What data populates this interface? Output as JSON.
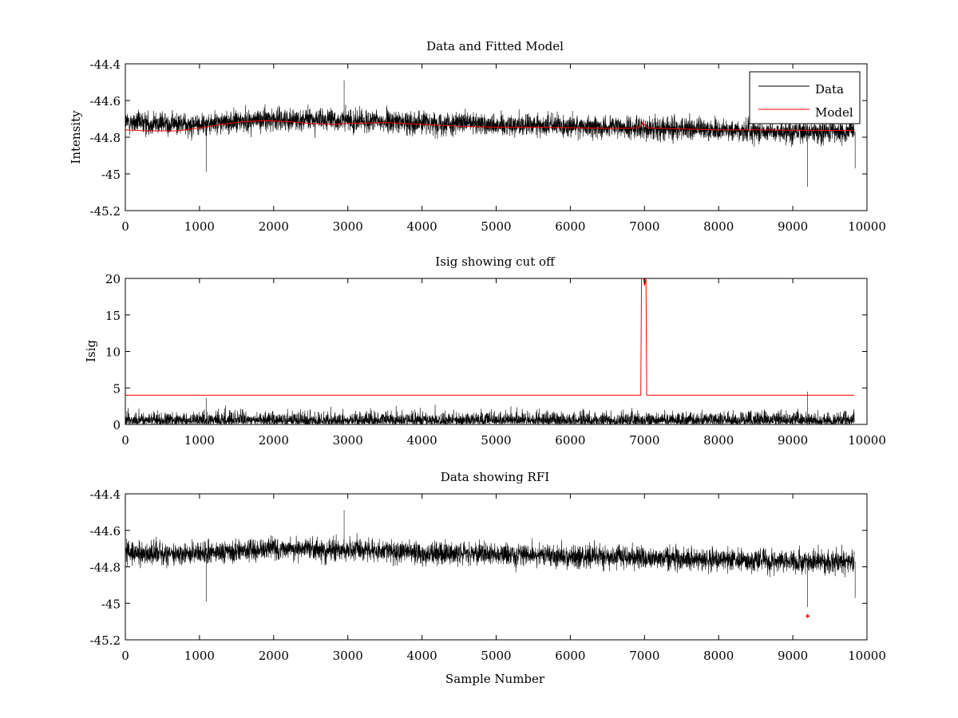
{
  "figure": {
    "xlabel": "Sample Number"
  },
  "chart_data": [
    {
      "type": "line",
      "title": "Data and Fitted Model",
      "xlabel": "",
      "ylabel": "Intensity",
      "xlim": [
        0,
        10000
      ],
      "ylim": [
        -45.2,
        -44.4
      ],
      "xticks": [
        "0",
        "1000",
        "2000",
        "3000",
        "4000",
        "5000",
        "6000",
        "7000",
        "8000",
        "9000",
        "10000"
      ],
      "yticks": [
        "-44.4",
        "-44.6",
        "-44.8",
        "-45",
        "-45.2"
      ],
      "legend": {
        "placement": "top-right",
        "entries": [
          "Data",
          "Model"
        ]
      },
      "series": [
        {
          "name": "Data",
          "color": "#000000",
          "kind": "noise",
          "n_points": 9830,
          "x_range": [
            1,
            9830
          ],
          "baseline": [
            [
              0,
              -44.72
            ],
            [
              1000,
              -44.73
            ],
            [
              2000,
              -44.7
            ],
            [
              3000,
              -44.71
            ],
            [
              4000,
              -44.72
            ],
            [
              5000,
              -44.73
            ],
            [
              6000,
              -44.74
            ],
            [
              7000,
              -44.75
            ],
            [
              8000,
              -44.76
            ],
            [
              9000,
              -44.77
            ],
            [
              9830,
              -44.77
            ]
          ],
          "amplitude": 0.1,
          "extremes": [
            [
              1090,
              -44.99
            ],
            [
              2950,
              -44.49
            ],
            [
              9200,
              -45.07
            ],
            [
              9840,
              -44.97
            ]
          ]
        },
        {
          "name": "Model",
          "color": "#ff0000",
          "x": [
            0,
            300,
            700,
            1000,
            1300,
            1600,
            1900,
            2200,
            2500,
            2800,
            3000,
            3500,
            4000,
            4500,
            5000,
            5500,
            6000,
            6500,
            6900,
            6960,
            6980,
            7000,
            7060,
            7500,
            8000,
            8500,
            9000,
            9500,
            9830
          ],
          "y": [
            -44.76,
            -44.765,
            -44.765,
            -44.75,
            -44.73,
            -44.715,
            -44.71,
            -44.715,
            -44.725,
            -44.73,
            -44.725,
            -44.72,
            -44.73,
            -44.74,
            -44.745,
            -44.745,
            -44.748,
            -44.752,
            -44.75,
            -44.735,
            -44.715,
            -44.735,
            -44.75,
            -44.755,
            -44.76,
            -44.76,
            -44.762,
            -44.763,
            -44.763
          ]
        }
      ]
    },
    {
      "type": "line",
      "title": "Isig showing cut off",
      "xlabel": "",
      "ylabel": "Isig",
      "xlim": [
        0,
        10000
      ],
      "ylim": [
        0,
        20
      ],
      "xticks": [
        "0",
        "1000",
        "2000",
        "3000",
        "4000",
        "5000",
        "6000",
        "7000",
        "8000",
        "9000",
        "10000"
      ],
      "yticks": [
        "0",
        "5",
        "10",
        "15",
        "20"
      ],
      "series": [
        {
          "color": "#000000",
          "kind": "abs-noise",
          "n_points": 9830,
          "x_range": [
            1,
            9830
          ],
          "level": 2.0,
          "extremes": [
            [
              1090,
              3.6
            ],
            [
              9200,
              4.5
            ]
          ]
        },
        {
          "color": "#ff0000",
          "x": [
            0,
            6950,
            6960,
            6990,
            7000,
            7020,
            7030,
            9830
          ],
          "y": [
            4,
            4,
            20,
            20,
            19,
            20,
            4,
            4
          ]
        }
      ]
    },
    {
      "type": "line",
      "title": "Data showing RFI",
      "xlabel": "Sample Number",
      "ylabel": "",
      "xlim": [
        0,
        10000
      ],
      "ylim": [
        -45.2,
        -44.4
      ],
      "xticks": [
        "0",
        "1000",
        "2000",
        "3000",
        "4000",
        "5000",
        "6000",
        "7000",
        "8000",
        "9000",
        "10000"
      ],
      "yticks": [
        "-44.4",
        "-44.6",
        "-44.8",
        "-45",
        "-45.2"
      ],
      "series": [
        {
          "color": "#000000",
          "kind": "noise",
          "n_points": 9830,
          "x_range": [
            1,
            9830
          ],
          "baseline": [
            [
              0,
              -44.72
            ],
            [
              1000,
              -44.73
            ],
            [
              2000,
              -44.7
            ],
            [
              3000,
              -44.71
            ],
            [
              4000,
              -44.72
            ],
            [
              5000,
              -44.73
            ],
            [
              6000,
              -44.74
            ],
            [
              7000,
              -44.75
            ],
            [
              8000,
              -44.76
            ],
            [
              9000,
              -44.77
            ],
            [
              9830,
              -44.77
            ]
          ],
          "amplitude": 0.1,
          "extremes": [
            [
              1090,
              -44.99
            ],
            [
              2950,
              -44.49
            ],
            [
              9200,
              -45.02
            ],
            [
              9840,
              -44.97
            ]
          ]
        },
        {
          "color": "#ff0000",
          "kind": "markers",
          "x": [
            9200
          ],
          "y": [
            -45.07
          ]
        }
      ]
    }
  ]
}
